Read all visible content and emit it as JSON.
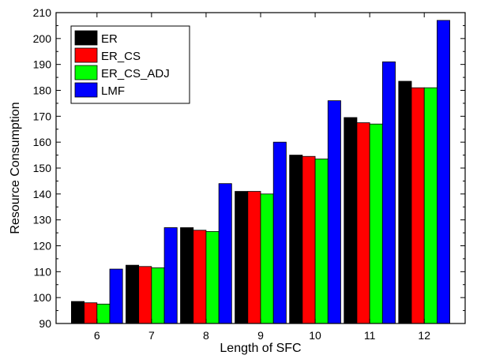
{
  "chart_data": {
    "type": "bar",
    "categories": [
      "6",
      "7",
      "8",
      "9",
      "10",
      "11",
      "12"
    ],
    "series": [
      {
        "name": "ER",
        "color": "#000000",
        "values": [
          98.5,
          112.5,
          127,
          141,
          155,
          169.5,
          183.5
        ]
      },
      {
        "name": "ER_CS",
        "color": "#ff0000",
        "values": [
          98,
          112,
          126,
          141,
          154.5,
          167.5,
          181
        ]
      },
      {
        "name": "ER_CS_ADJ",
        "color": "#00ff00",
        "values": [
          97.5,
          111.5,
          125.5,
          140,
          153.5,
          167,
          181
        ]
      },
      {
        "name": "LMF",
        "color": "#0000ff",
        "values": [
          111,
          127,
          144,
          160,
          176,
          191,
          207
        ]
      }
    ],
    "xlabel": "Length of SFC",
    "ylabel": "Resource Consumption",
    "ylim": [
      90,
      210
    ],
    "yticks": [
      "90",
      "100",
      "110",
      "120",
      "130",
      "140",
      "150",
      "160",
      "170",
      "180",
      "190",
      "200",
      "210"
    ],
    "grid": false,
    "legend_position": "top-left"
  }
}
